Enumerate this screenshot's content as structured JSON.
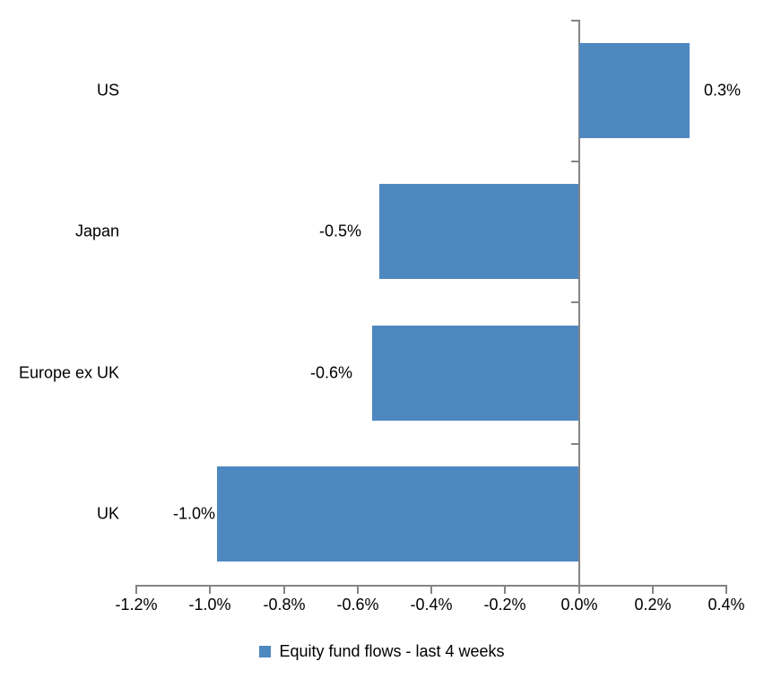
{
  "chart_data": {
    "type": "bar",
    "orientation": "horizontal",
    "title": "",
    "xlabel": "",
    "ylabel": "",
    "categories": [
      "US",
      "Japan",
      "Europe ex UK",
      "UK"
    ],
    "series": [
      {
        "name": "Equity fund flows - last 4 weeks",
        "values": [
          0.3,
          -0.54,
          -0.56,
          -0.98
        ],
        "data_labels": [
          "0.3%",
          "-0.5%",
          "-0.6%",
          "-1.0%"
        ]
      }
    ],
    "xlim": [
      -1.2,
      0.4
    ],
    "x_ticks": [
      -1.2,
      -1.0,
      -0.8,
      -0.6,
      -0.4,
      -0.2,
      0.0,
      0.2,
      0.4
    ],
    "x_tick_labels": [
      "-1.2%",
      "-1.0%",
      "-0.8%",
      "-0.6%",
      "-0.4%",
      "-0.2%",
      "0.0%",
      "0.2%",
      "0.4%"
    ],
    "grid": false,
    "legend": {
      "position": "bottom",
      "label": "Equity fund flows - last 4 weeks"
    },
    "colors": {
      "bar": "#4E88C0",
      "axis": "#848484",
      "text": "#000000",
      "background": "#FFFFFF"
    }
  }
}
